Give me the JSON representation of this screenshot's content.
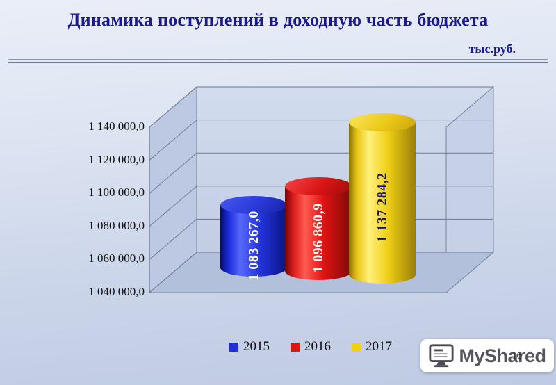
{
  "slide": {
    "title": "Динамика поступлений в доходную часть бюджета",
    "unit_label": "тыс.руб.",
    "page_number": "16"
  },
  "chart_data": {
    "type": "bar",
    "style": "3d-cylinder",
    "categories": [
      "2015",
      "2016",
      "2017"
    ],
    "values": [
      1083267.0,
      1096860.9,
      1137284.2
    ],
    "value_labels": [
      "1 083 267,0",
      "1 096 860,9",
      "1 137 284,2"
    ],
    "series_colors": [
      "#2230d2",
      "#e01414",
      "#f0d01a"
    ],
    "ylim": [
      1040000,
      1140000
    ],
    "ytick_step": 20000,
    "ytick_labels": [
      "1 140 000,0",
      "1 120 000,0",
      "1 100 000,0",
      "1 080 000,0",
      "1 060 000,0",
      "1 040 000,0"
    ],
    "legend": [
      "2015",
      "2016",
      "2017"
    ],
    "legend_position": "bottom",
    "grid": true,
    "title": "Динамика поступлений в доходную часть бюджета",
    "ylabel": "тыс.руб."
  },
  "watermark": {
    "brand": "MyShared",
    "icon": "monitor-icon"
  }
}
